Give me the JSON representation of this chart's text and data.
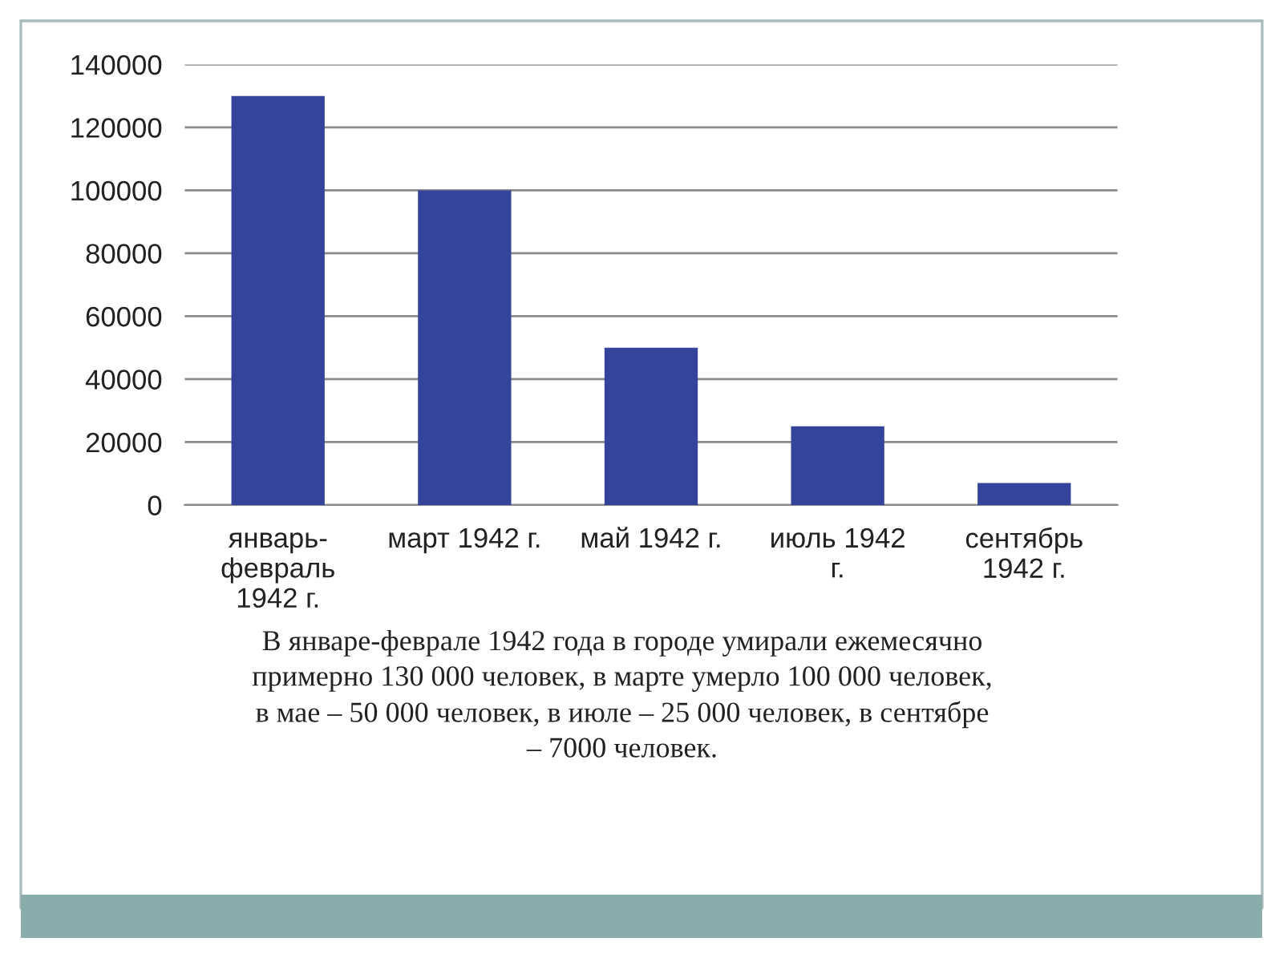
{
  "chart_data": {
    "type": "bar",
    "categories": [
      "январь-\nфевраль\n1942 г.",
      "март 1942 г.",
      "май 1942 г.",
      "июль 1942\nг.",
      "сентябрь\n1942 г."
    ],
    "values": [
      130000,
      100000,
      50000,
      25000,
      7000
    ],
    "color": "#34449a",
    "ylim": [
      0,
      140000
    ],
    "yticks": [
      0,
      20000,
      40000,
      60000,
      80000,
      100000,
      120000,
      140000
    ],
    "grid": "y",
    "legend": false,
    "annotations": [
      "В январе-феврале 1942 года в городе умирали ежемесячно\nпримерно 130 000 человек, в марте умерло 100 000 человек,\nв мае – 50 000 человек, в июле – 25 000 человек, в сентябре\n– 7000 человек."
    ]
  }
}
